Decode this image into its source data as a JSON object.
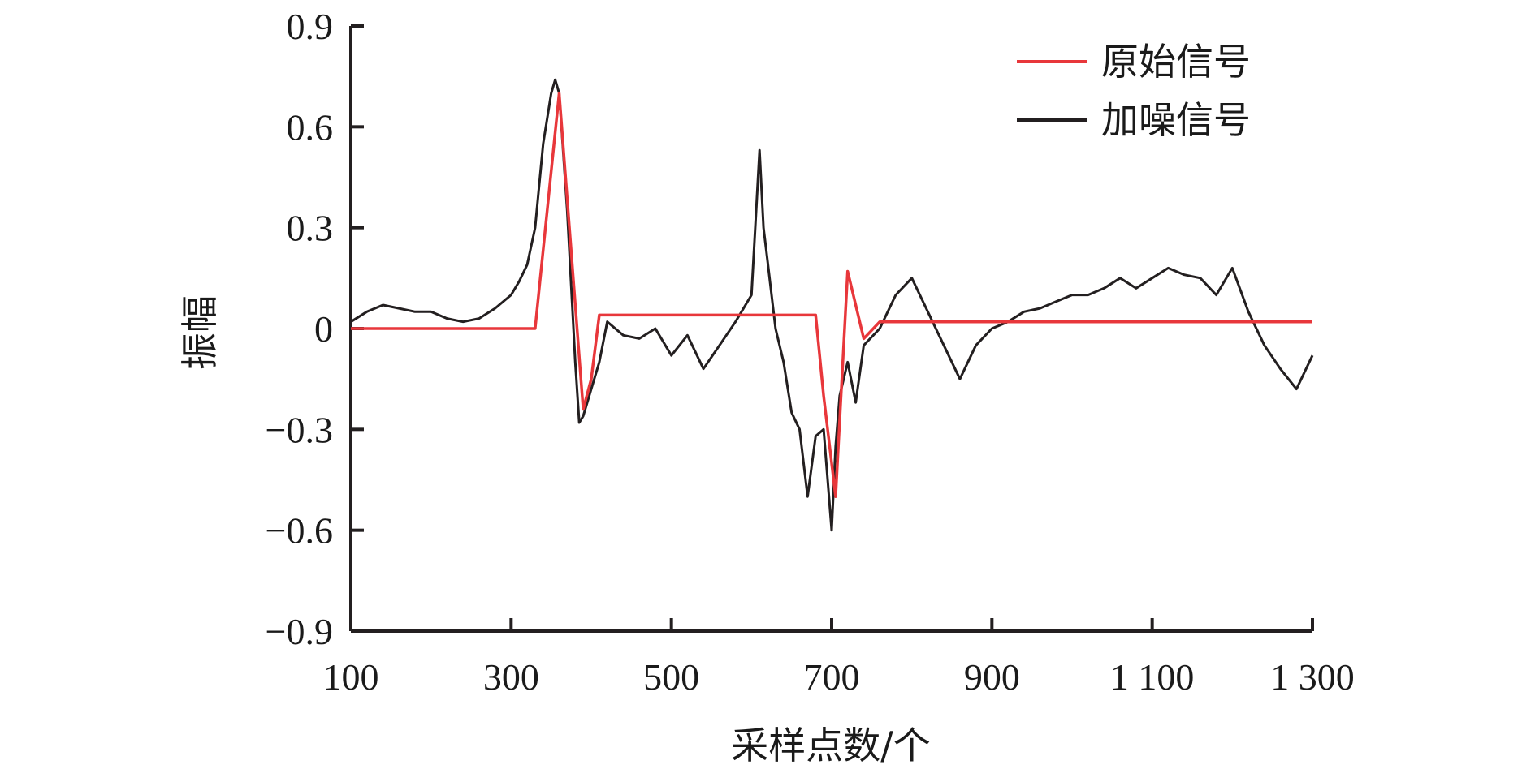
{
  "chart_data": {
    "type": "line",
    "title": "",
    "xlabel": "采样点数/个",
    "ylabel": "振幅",
    "xlim": [
      100,
      1300
    ],
    "ylim": [
      -0.9,
      0.9
    ],
    "x_ticks": [
      100,
      300,
      500,
      700,
      900,
      1100,
      1300
    ],
    "x_tick_labels": [
      "100",
      "300",
      "500",
      "700",
      "900",
      "1 100",
      "1 300"
    ],
    "y_ticks": [
      0.9,
      0.6,
      0.3,
      0,
      -0.3,
      -0.6,
      -0.9
    ],
    "y_tick_labels": [
      "0.9",
      "0.6",
      "0.3",
      "0",
      "−0.3",
      "−0.6",
      "−0.9"
    ],
    "grid": false,
    "legend_position": "top-right",
    "series": [
      {
        "name": "原始信号",
        "color": "#e8373b",
        "x": [
          100,
          330,
          360,
          390,
          400,
          410,
          680,
          690,
          705,
          720,
          740,
          760,
          1300
        ],
        "y": [
          0,
          0,
          0.7,
          -0.24,
          -0.15,
          0.04,
          0.04,
          -0.2,
          -0.5,
          0.17,
          -0.03,
          0.02,
          0.02
        ]
      },
      {
        "name": "加噪信号",
        "color": "#231f20",
        "x": [
          100,
          120,
          140,
          160,
          180,
          200,
          220,
          240,
          260,
          280,
          300,
          310,
          320,
          330,
          340,
          350,
          355,
          360,
          370,
          380,
          385,
          390,
          395,
          400,
          410,
          420,
          440,
          460,
          480,
          500,
          520,
          540,
          560,
          580,
          600,
          610,
          615,
          620,
          630,
          640,
          650,
          660,
          670,
          680,
          690,
          700,
          705,
          710,
          720,
          730,
          740,
          760,
          780,
          800,
          820,
          840,
          860,
          880,
          900,
          920,
          940,
          960,
          980,
          1000,
          1020,
          1040,
          1060,
          1080,
          1100,
          1120,
          1140,
          1160,
          1180,
          1200,
          1220,
          1240,
          1260,
          1280,
          1300
        ],
        "y": [
          0.02,
          0.05,
          0.07,
          0.06,
          0.05,
          0.05,
          0.03,
          0.02,
          0.03,
          0.06,
          0.1,
          0.14,
          0.19,
          0.3,
          0.55,
          0.7,
          0.74,
          0.7,
          0.35,
          -0.1,
          -0.28,
          -0.26,
          -0.22,
          -0.18,
          -0.1,
          0.02,
          -0.02,
          -0.03,
          0.0,
          -0.08,
          -0.02,
          -0.12,
          -0.05,
          0.02,
          0.1,
          0.53,
          0.3,
          0.2,
          0.0,
          -0.1,
          -0.25,
          -0.3,
          -0.5,
          -0.32,
          -0.3,
          -0.6,
          -0.35,
          -0.2,
          -0.1,
          -0.22,
          -0.05,
          0.0,
          0.1,
          0.15,
          0.05,
          -0.05,
          -0.15,
          -0.05,
          0.0,
          0.02,
          0.05,
          0.06,
          0.08,
          0.1,
          0.1,
          0.12,
          0.15,
          0.12,
          0.15,
          0.18,
          0.16,
          0.15,
          0.1,
          0.18,
          0.05,
          -0.05,
          -0.12,
          -0.18,
          -0.08
        ]
      }
    ]
  }
}
